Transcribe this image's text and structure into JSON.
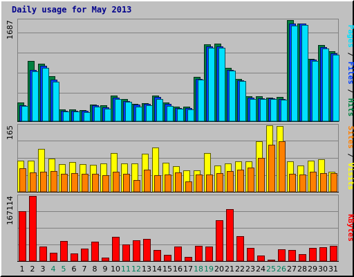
{
  "title": "Daily usage for May 2013",
  "colors": {
    "hits": "#008040",
    "files": "#0040ff",
    "pages": "#00e0ff",
    "visits": "#ffff00",
    "sites": "#ff8000",
    "kbytes": "#ff0000",
    "weekend_label": "#00805c",
    "weekday_label": "#000000"
  },
  "chart_data": [
    {
      "type": "bar",
      "ymax_label": "1687",
      "right_label": {
        "parts": [
          "Pages",
          " / ",
          "Files",
          " / ",
          "Hits"
        ]
      },
      "ylim": [
        0,
        1687
      ],
      "series": [
        {
          "name": "Hits",
          "values": [
            315,
            1000,
            960,
            750,
            195,
            195,
            190,
            280,
            260,
            430,
            365,
            290,
            305,
            425,
            310,
            240,
            245,
            745,
            1280,
            1290,
            885,
            705,
            420,
            420,
            395,
            400,
            1685,
            1625,
            1045,
            1270,
            1170
          ]
        },
        {
          "name": "Files",
          "values": [
            265,
            850,
            925,
            690,
            170,
            175,
            175,
            265,
            235,
            395,
            340,
            275,
            290,
            400,
            290,
            225,
            220,
            710,
            1250,
            1250,
            860,
            685,
            395,
            380,
            380,
            370,
            1630,
            1630,
            1025,
            1240,
            1135
          ]
        },
        {
          "name": "Pages",
          "values": [
            250,
            830,
            895,
            660,
            160,
            160,
            155,
            240,
            205,
            375,
            320,
            245,
            270,
            365,
            255,
            210,
            195,
            690,
            1225,
            1225,
            840,
            665,
            375,
            365,
            370,
            355,
            1590,
            1610,
            1010,
            1210,
            1105
          ]
        }
      ]
    },
    {
      "type": "bar",
      "ymax_label": "165",
      "right_label": {
        "parts": [
          "Sites",
          " / ",
          "Visits"
        ]
      },
      "ylim": [
        0,
        165
      ],
      "series": [
        {
          "name": "Visits",
          "values": [
            77,
            78,
            107,
            83,
            68,
            74,
            69,
            67,
            71,
            96,
            71,
            71,
            94,
            110,
            73,
            63,
            53,
            54,
            97,
            65,
            71,
            75,
            75,
            125,
            165,
            163,
            75,
            66,
            78,
            80,
            50
          ]
        },
        {
          "name": "Sites",
          "values": [
            58,
            48,
            50,
            51,
            45,
            46,
            45,
            44,
            42,
            50,
            44,
            30,
            55,
            42,
            43,
            48,
            26,
            43,
            43,
            46,
            52,
            55,
            60,
            85,
            117,
            125,
            45,
            43,
            50,
            46,
            46
          ]
        }
      ]
    },
    {
      "type": "bar",
      "ymax_label": "167114",
      "right_label": {
        "parts": [
          "KBytes"
        ]
      },
      "ylim": [
        0,
        167114
      ],
      "series": [
        {
          "name": "KBytes",
          "values": [
            128000,
            167114,
            36500,
            22000,
            52000,
            19000,
            32500,
            50500,
            9000,
            63000,
            43000,
            53000,
            57000,
            29000,
            16000,
            37500,
            11000,
            39000,
            37000,
            105000,
            134000,
            64000,
            33000,
            15000,
            4000,
            30000,
            28000,
            17000,
            34500,
            35000,
            39000
          ]
        }
      ]
    }
  ],
  "days": [
    {
      "label": "1",
      "weekend": false
    },
    {
      "label": "2",
      "weekend": false
    },
    {
      "label": "3",
      "weekend": false
    },
    {
      "label": "4",
      "weekend": true
    },
    {
      "label": "5",
      "weekend": true
    },
    {
      "label": "6",
      "weekend": false
    },
    {
      "label": "7",
      "weekend": false
    },
    {
      "label": "8",
      "weekend": false
    },
    {
      "label": "9",
      "weekend": false
    },
    {
      "label": "10",
      "weekend": false
    },
    {
      "label": "11",
      "weekend": true
    },
    {
      "label": "12",
      "weekend": true
    },
    {
      "label": "13",
      "weekend": false
    },
    {
      "label": "14",
      "weekend": false
    },
    {
      "label": "15",
      "weekend": false
    },
    {
      "label": "16",
      "weekend": false
    },
    {
      "label": "17",
      "weekend": false
    },
    {
      "label": "18",
      "weekend": true
    },
    {
      "label": "19",
      "weekend": true
    },
    {
      "label": "20",
      "weekend": false
    },
    {
      "label": "21",
      "weekend": false
    },
    {
      "label": "22",
      "weekend": false
    },
    {
      "label": "23",
      "weekend": false
    },
    {
      "label": "24",
      "weekend": false
    },
    {
      "label": "25",
      "weekend": true
    },
    {
      "label": "26",
      "weekend": true
    },
    {
      "label": "27",
      "weekend": false
    },
    {
      "label": "28",
      "weekend": false
    },
    {
      "label": "29",
      "weekend": false
    },
    {
      "label": "30",
      "weekend": false
    },
    {
      "label": "31",
      "weekend": false
    }
  ]
}
